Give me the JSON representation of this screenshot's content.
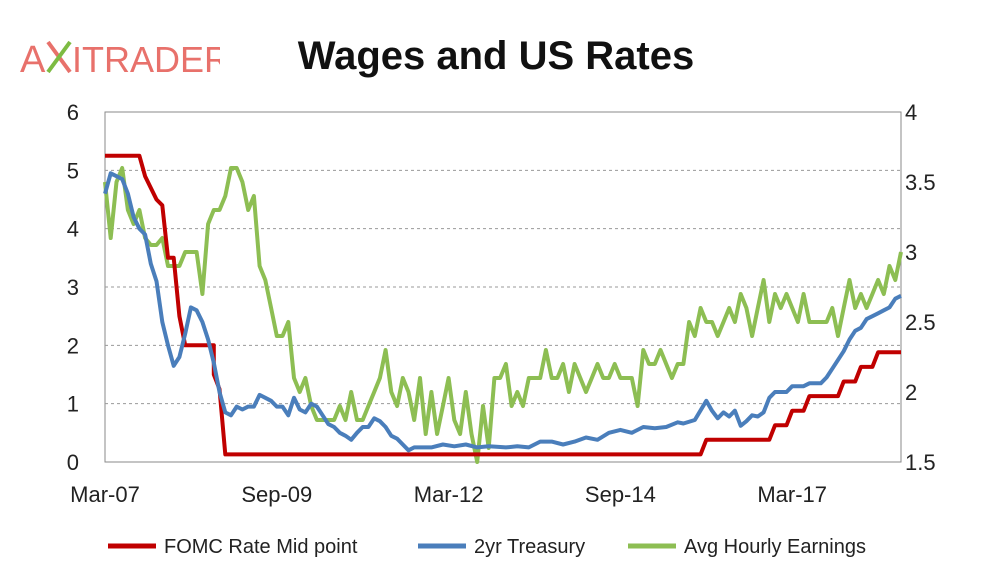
{
  "logo": {
    "text_a": "A",
    "text_x": "X",
    "text_rest": "ITRADER",
    "color_primary": "#e8716b",
    "color_accent": "#7dbb42"
  },
  "chart_data": {
    "type": "line",
    "title": "Wages and US Rates",
    "x_ticks": [
      "Mar-07",
      "Sep-09",
      "Mar-12",
      "Sep-14",
      "Mar-17"
    ],
    "x_tick_dates": [
      "2007-03",
      "2009-09",
      "2012-03",
      "2014-09",
      "2017-03"
    ],
    "x_range": [
      "2007-03",
      "2018-10"
    ],
    "y_left": {
      "ylim": [
        0,
        6
      ],
      "ticks": [
        "0",
        "1",
        "2",
        "3",
        "4",
        "5",
        "6"
      ]
    },
    "y_right": {
      "ylim": [
        1.5,
        4
      ],
      "ticks": [
        "1.5",
        "2",
        "2.5",
        "3",
        "3.5",
        "4"
      ]
    },
    "grid": "horizontal-dashed",
    "legend_position": "bottom",
    "series": [
      {
        "name": "FOMC Rate Mid point",
        "axis": "left",
        "color": "#c00000",
        "points": [
          [
            "2007-03",
            5.25
          ],
          [
            "2007-09",
            5.25
          ],
          [
            "2007-10",
            4.9
          ],
          [
            "2007-12",
            4.5
          ],
          [
            "2008-01",
            4.4
          ],
          [
            "2008-02",
            3.5
          ],
          [
            "2008-03",
            3.5
          ],
          [
            "2008-04",
            2.5
          ],
          [
            "2008-05",
            2.0
          ],
          [
            "2008-10",
            2.0
          ],
          [
            "2008-10",
            1.5
          ],
          [
            "2008-11",
            1.25
          ],
          [
            "2008-12",
            0.13
          ],
          [
            "2015-11",
            0.13
          ],
          [
            "2015-12",
            0.38
          ],
          [
            "2016-11",
            0.38
          ],
          [
            "2016-12",
            0.63
          ],
          [
            "2017-02",
            0.63
          ],
          [
            "2017-03",
            0.88
          ],
          [
            "2017-05",
            0.88
          ],
          [
            "2017-06",
            1.13
          ],
          [
            "2017-11",
            1.13
          ],
          [
            "2017-12",
            1.38
          ],
          [
            "2018-02",
            1.38
          ],
          [
            "2018-03",
            1.63
          ],
          [
            "2018-05",
            1.63
          ],
          [
            "2018-06",
            1.88
          ],
          [
            "2018-10",
            1.88
          ]
        ]
      },
      {
        "name": "2yr Treasury",
        "axis": "left",
        "color": "#4a7ebb",
        "points": [
          [
            "2007-03",
            4.6
          ],
          [
            "2007-04",
            4.95
          ],
          [
            "2007-05",
            4.9
          ],
          [
            "2007-06",
            4.85
          ],
          [
            "2007-07",
            4.6
          ],
          [
            "2007-08",
            4.2
          ],
          [
            "2007-09",
            4.0
          ],
          [
            "2007-10",
            3.9
          ],
          [
            "2007-11",
            3.4
          ],
          [
            "2007-12",
            3.1
          ],
          [
            "2008-01",
            2.4
          ],
          [
            "2008-02",
            2.0
          ],
          [
            "2008-03",
            1.65
          ],
          [
            "2008-04",
            1.8
          ],
          [
            "2008-05",
            2.2
          ],
          [
            "2008-06",
            2.65
          ],
          [
            "2008-07",
            2.6
          ],
          [
            "2008-08",
            2.4
          ],
          [
            "2008-09",
            2.1
          ],
          [
            "2008-10",
            1.7
          ],
          [
            "2008-11",
            1.2
          ],
          [
            "2008-12",
            0.85
          ],
          [
            "2009-01",
            0.8
          ],
          [
            "2009-02",
            0.95
          ],
          [
            "2009-03",
            0.9
          ],
          [
            "2009-04",
            0.95
          ],
          [
            "2009-05",
            0.95
          ],
          [
            "2009-06",
            1.15
          ],
          [
            "2009-07",
            1.1
          ],
          [
            "2009-08",
            1.05
          ],
          [
            "2009-09",
            0.95
          ],
          [
            "2009-10",
            0.95
          ],
          [
            "2009-11",
            0.8
          ],
          [
            "2009-12",
            1.1
          ],
          [
            "2010-01",
            0.9
          ],
          [
            "2010-02",
            0.85
          ],
          [
            "2010-03",
            1.0
          ],
          [
            "2010-04",
            0.95
          ],
          [
            "2010-05",
            0.8
          ],
          [
            "2010-06",
            0.65
          ],
          [
            "2010-07",
            0.6
          ],
          [
            "2010-08",
            0.5
          ],
          [
            "2010-09",
            0.45
          ],
          [
            "2010-10",
            0.38
          ],
          [
            "2010-11",
            0.5
          ],
          [
            "2010-12",
            0.6
          ],
          [
            "2011-01",
            0.6
          ],
          [
            "2011-02",
            0.75
          ],
          [
            "2011-03",
            0.7
          ],
          [
            "2011-04",
            0.6
          ],
          [
            "2011-05",
            0.45
          ],
          [
            "2011-06",
            0.4
          ],
          [
            "2011-07",
            0.3
          ],
          [
            "2011-08",
            0.2
          ],
          [
            "2011-09",
            0.25
          ],
          [
            "2011-12",
            0.25
          ],
          [
            "2012-02",
            0.3
          ],
          [
            "2012-04",
            0.27
          ],
          [
            "2012-06",
            0.3
          ],
          [
            "2012-08",
            0.25
          ],
          [
            "2012-10",
            0.27
          ],
          [
            "2013-01",
            0.25
          ],
          [
            "2013-03",
            0.27
          ],
          [
            "2013-05",
            0.25
          ],
          [
            "2013-07",
            0.35
          ],
          [
            "2013-09",
            0.35
          ],
          [
            "2013-11",
            0.3
          ],
          [
            "2014-01",
            0.35
          ],
          [
            "2014-03",
            0.42
          ],
          [
            "2014-05",
            0.38
          ],
          [
            "2014-07",
            0.5
          ],
          [
            "2014-09",
            0.55
          ],
          [
            "2014-11",
            0.5
          ],
          [
            "2015-01",
            0.6
          ],
          [
            "2015-03",
            0.58
          ],
          [
            "2015-05",
            0.6
          ],
          [
            "2015-07",
            0.68
          ],
          [
            "2015-08",
            0.66
          ],
          [
            "2015-10",
            0.72
          ],
          [
            "2015-12",
            1.05
          ],
          [
            "2016-01",
            0.88
          ],
          [
            "2016-02",
            0.75
          ],
          [
            "2016-03",
            0.85
          ],
          [
            "2016-04",
            0.78
          ],
          [
            "2016-05",
            0.88
          ],
          [
            "2016-06",
            0.62
          ],
          [
            "2016-07",
            0.7
          ],
          [
            "2016-08",
            0.8
          ],
          [
            "2016-09",
            0.78
          ],
          [
            "2016-10",
            0.85
          ],
          [
            "2016-11",
            1.1
          ],
          [
            "2016-12",
            1.2
          ],
          [
            "2017-02",
            1.2
          ],
          [
            "2017-03",
            1.3
          ],
          [
            "2017-05",
            1.3
          ],
          [
            "2017-06",
            1.35
          ],
          [
            "2017-08",
            1.35
          ],
          [
            "2017-09",
            1.45
          ],
          [
            "2017-10",
            1.6
          ],
          [
            "2017-11",
            1.75
          ],
          [
            "2017-12",
            1.9
          ],
          [
            "2018-01",
            2.1
          ],
          [
            "2018-02",
            2.25
          ],
          [
            "2018-03",
            2.3
          ],
          [
            "2018-04",
            2.45
          ],
          [
            "2018-05",
            2.5
          ],
          [
            "2018-06",
            2.55
          ],
          [
            "2018-07",
            2.6
          ],
          [
            "2018-08",
            2.65
          ],
          [
            "2018-09",
            2.8
          ],
          [
            "2018-10",
            2.85
          ]
        ]
      },
      {
        "name": "Avg Hourly Earnings",
        "axis": "right",
        "color": "#8dbe53",
        "points": [
          [
            "2007-03",
            3.5
          ],
          [
            "2007-04",
            3.1
          ],
          [
            "2007-05",
            3.5
          ],
          [
            "2007-06",
            3.6
          ],
          [
            "2007-07",
            3.3
          ],
          [
            "2007-08",
            3.2
          ],
          [
            "2007-09",
            3.3
          ],
          [
            "2007-10",
            3.1
          ],
          [
            "2007-11",
            3.05
          ],
          [
            "2007-12",
            3.05
          ],
          [
            "2008-01",
            3.1
          ],
          [
            "2008-02",
            2.9
          ],
          [
            "2008-03",
            2.9
          ],
          [
            "2008-04",
            2.9
          ],
          [
            "2008-05",
            3.0
          ],
          [
            "2008-06",
            3.0
          ],
          [
            "2008-07",
            3.0
          ],
          [
            "2008-08",
            2.7
          ],
          [
            "2008-09",
            3.2
          ],
          [
            "2008-10",
            3.3
          ],
          [
            "2008-11",
            3.3
          ],
          [
            "2008-12",
            3.4
          ],
          [
            "2009-01",
            3.6
          ],
          [
            "2009-02",
            3.6
          ],
          [
            "2009-03",
            3.5
          ],
          [
            "2009-04",
            3.3
          ],
          [
            "2009-05",
            3.4
          ],
          [
            "2009-06",
            2.9
          ],
          [
            "2009-07",
            2.8
          ],
          [
            "2009-08",
            2.6
          ],
          [
            "2009-09",
            2.4
          ],
          [
            "2009-10",
            2.4
          ],
          [
            "2009-11",
            2.5
          ],
          [
            "2009-12",
            2.1
          ],
          [
            "2010-01",
            2.0
          ],
          [
            "2010-02",
            2.1
          ],
          [
            "2010-03",
            1.9
          ],
          [
            "2010-04",
            1.8
          ],
          [
            "2010-05",
            1.8
          ],
          [
            "2010-06",
            1.8
          ],
          [
            "2010-07",
            1.8
          ],
          [
            "2010-08",
            1.9
          ],
          [
            "2010-09",
            1.8
          ],
          [
            "2010-10",
            2.0
          ],
          [
            "2010-11",
            1.8
          ],
          [
            "2010-12",
            1.8
          ],
          [
            "2011-01",
            1.9
          ],
          [
            "2011-02",
            2.0
          ],
          [
            "2011-03",
            2.1
          ],
          [
            "2011-04",
            2.3
          ],
          [
            "2011-05",
            2.0
          ],
          [
            "2011-06",
            1.9
          ],
          [
            "2011-07",
            2.1
          ],
          [
            "2011-08",
            2.0
          ],
          [
            "2011-09",
            1.8
          ],
          [
            "2011-10",
            2.1
          ],
          [
            "2011-11",
            1.7
          ],
          [
            "2011-12",
            2.0
          ],
          [
            "2012-01",
            1.7
          ],
          [
            "2012-02",
            1.9
          ],
          [
            "2012-03",
            2.1
          ],
          [
            "2012-04",
            1.8
          ],
          [
            "2012-05",
            1.7
          ],
          [
            "2012-06",
            2.0
          ],
          [
            "2012-07",
            1.7
          ],
          [
            "2012-08",
            1.5
          ],
          [
            "2012-09",
            1.9
          ],
          [
            "2012-10",
            1.6
          ],
          [
            "2012-11",
            2.1
          ],
          [
            "2012-12",
            2.1
          ],
          [
            "2013-01",
            2.2
          ],
          [
            "2013-02",
            1.9
          ],
          [
            "2013-03",
            2.0
          ],
          [
            "2013-04",
            1.9
          ],
          [
            "2013-05",
            2.1
          ],
          [
            "2013-06",
            2.1
          ],
          [
            "2013-07",
            2.1
          ],
          [
            "2013-08",
            2.3
          ],
          [
            "2013-09",
            2.1
          ],
          [
            "2013-10",
            2.1
          ],
          [
            "2013-11",
            2.2
          ],
          [
            "2013-12",
            2.0
          ],
          [
            "2014-01",
            2.2
          ],
          [
            "2014-02",
            2.1
          ],
          [
            "2014-03",
            2.0
          ],
          [
            "2014-04",
            2.1
          ],
          [
            "2014-05",
            2.2
          ],
          [
            "2014-06",
            2.1
          ],
          [
            "2014-07",
            2.1
          ],
          [
            "2014-08",
            2.2
          ],
          [
            "2014-09",
            2.1
          ],
          [
            "2014-10",
            2.1
          ],
          [
            "2014-11",
            2.1
          ],
          [
            "2014-12",
            1.9
          ],
          [
            "2015-01",
            2.3
          ],
          [
            "2015-02",
            2.2
          ],
          [
            "2015-03",
            2.2
          ],
          [
            "2015-04",
            2.3
          ],
          [
            "2015-05",
            2.2
          ],
          [
            "2015-06",
            2.1
          ],
          [
            "2015-07",
            2.2
          ],
          [
            "2015-08",
            2.2
          ],
          [
            "2015-09",
            2.5
          ],
          [
            "2015-10",
            2.4
          ],
          [
            "2015-11",
            2.6
          ],
          [
            "2015-12",
            2.5
          ],
          [
            "2016-01",
            2.5
          ],
          [
            "2016-02",
            2.4
          ],
          [
            "2016-03",
            2.5
          ],
          [
            "2016-04",
            2.6
          ],
          [
            "2016-05",
            2.5
          ],
          [
            "2016-06",
            2.7
          ],
          [
            "2016-07",
            2.6
          ],
          [
            "2016-08",
            2.4
          ],
          [
            "2016-09",
            2.6
          ],
          [
            "2016-10",
            2.8
          ],
          [
            "2016-11",
            2.5
          ],
          [
            "2016-12",
            2.7
          ],
          [
            "2017-01",
            2.6
          ],
          [
            "2017-02",
            2.7
          ],
          [
            "2017-03",
            2.6
          ],
          [
            "2017-04",
            2.5
          ],
          [
            "2017-05",
            2.7
          ],
          [
            "2017-06",
            2.5
          ],
          [
            "2017-07",
            2.5
          ],
          [
            "2017-08",
            2.5
          ],
          [
            "2017-09",
            2.5
          ],
          [
            "2017-10",
            2.6
          ],
          [
            "2017-11",
            2.4
          ],
          [
            "2017-12",
            2.6
          ],
          [
            "2018-01",
            2.8
          ],
          [
            "2018-02",
            2.6
          ],
          [
            "2018-03",
            2.7
          ],
          [
            "2018-04",
            2.6
          ],
          [
            "2018-05",
            2.7
          ],
          [
            "2018-06",
            2.8
          ],
          [
            "2018-07",
            2.7
          ],
          [
            "2018-08",
            2.9
          ],
          [
            "2018-09",
            2.8
          ],
          [
            "2018-10",
            3.0
          ]
        ]
      }
    ]
  }
}
